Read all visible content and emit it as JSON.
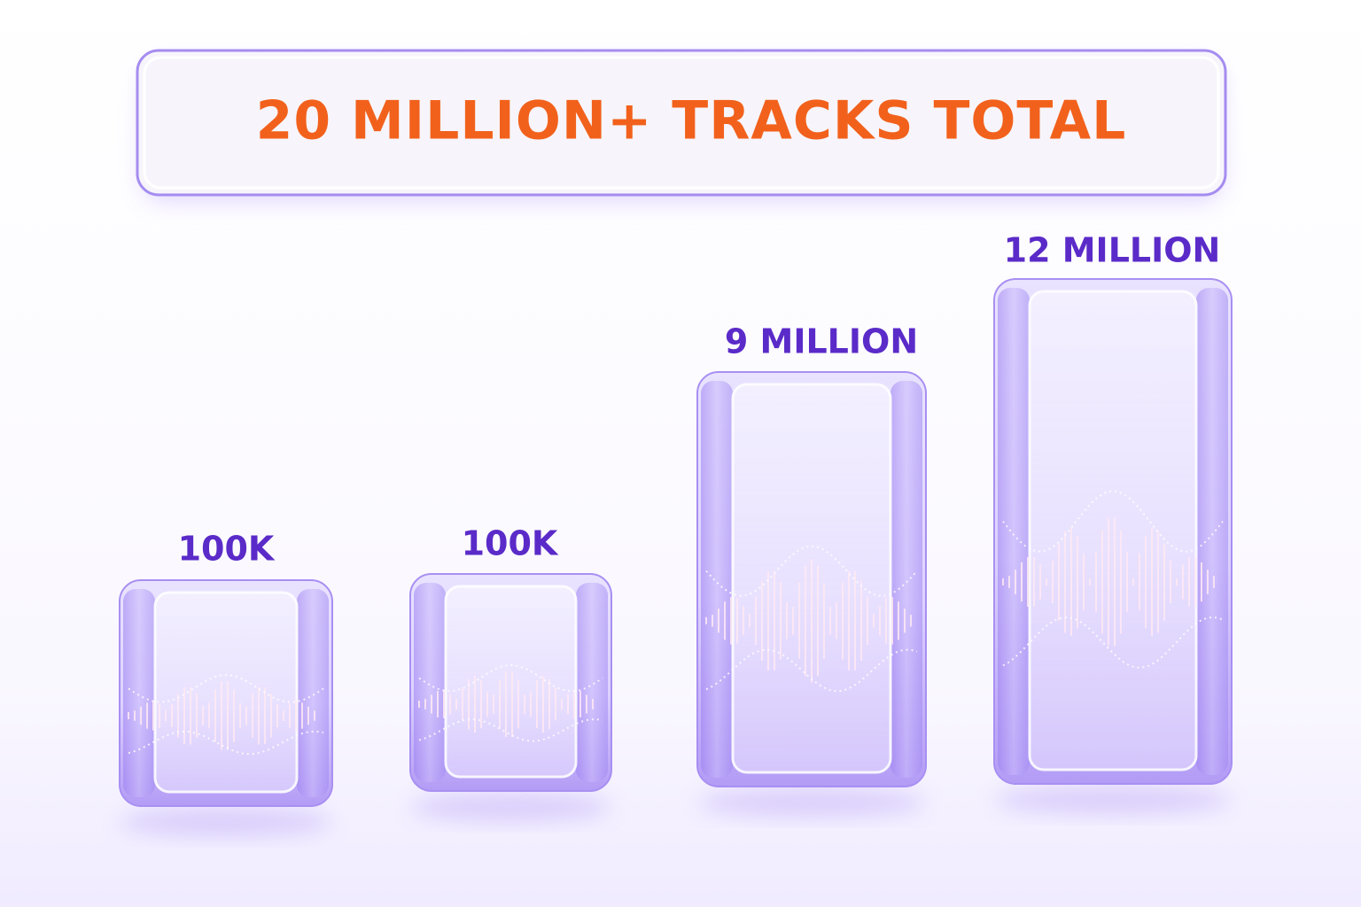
{
  "title": "20 MILLION+ TRACKS TOTAL",
  "blocks": [
    {
      "label": "100K"
    },
    {
      "label": "100K"
    },
    {
      "label": "9 MILLION"
    },
    {
      "label": "12 MILLION"
    }
  ]
}
